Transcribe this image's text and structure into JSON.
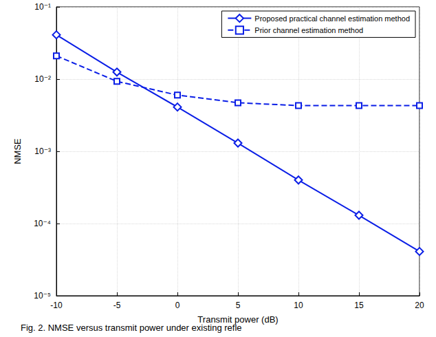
{
  "chart_data": {
    "type": "line",
    "caption": "Fig. 2. NMSE versus transmit power under existing refle",
    "x_label": "Transmit power (dB)",
    "y_label": "NMSE",
    "x": [
      -10,
      -5,
      0,
      5,
      10,
      15,
      20
    ],
    "series": [
      {
        "name": "Proposed practical channel estimation method",
        "color": "#0a1ee6",
        "marker": "diamond",
        "line_style": "solid",
        "values": [
          0.041,
          0.0125,
          0.0041,
          0.0013,
          0.0004,
          0.00013,
          4.1e-05
        ]
      },
      {
        "name": "Prior channel estimation method",
        "color": "#0a1ee6",
        "marker": "square",
        "line_style": "dashed",
        "values": [
          0.021,
          0.0093,
          0.006,
          0.0047,
          0.0043,
          0.0043,
          0.0043
        ]
      }
    ],
    "xlim": [
      -10,
      20
    ],
    "xticks": [
      -10,
      -5,
      0,
      5,
      10,
      15,
      20
    ],
    "ylim": [
      1e-05,
      0.1
    ],
    "yticks": [
      {
        "value": 1e-05,
        "label": "10⁻⁵"
      },
      {
        "value": 0.0001,
        "label": "10⁻⁴"
      },
      {
        "value": 0.001,
        "label": "10⁻³"
      },
      {
        "value": 0.01,
        "label": "10⁻²"
      },
      {
        "value": 0.1,
        "label": "10⁻¹"
      }
    ],
    "log": "y",
    "grid": true,
    "legend": "upper right"
  }
}
